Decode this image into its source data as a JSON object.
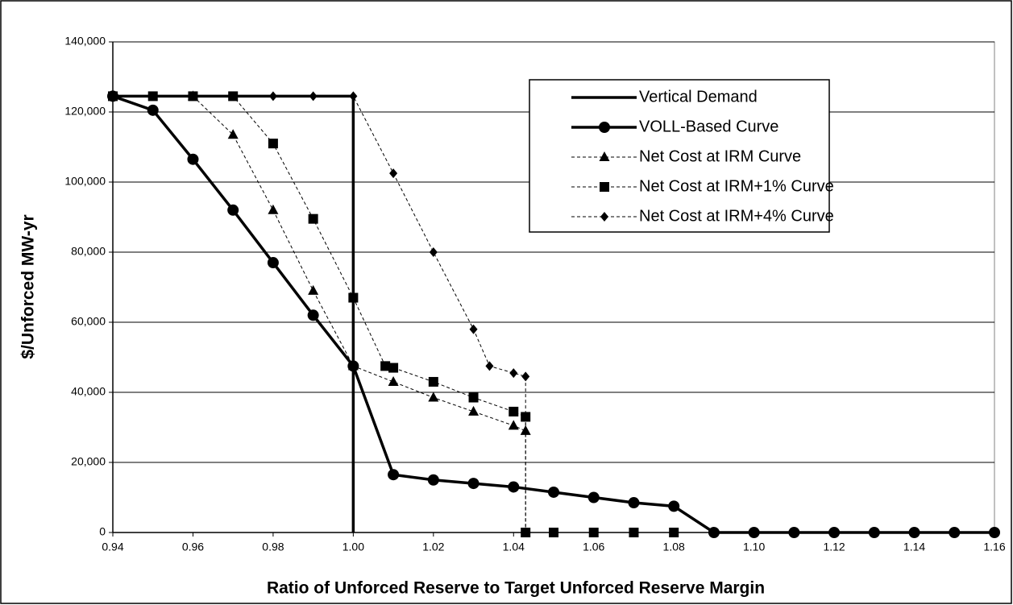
{
  "chart_data": {
    "type": "line",
    "x_label": "Ratio of Unforced Reserve to Target Unforced Reserve Margin",
    "y_label": "$/Unforced MW-yr",
    "xlim": [
      0.94,
      1.16
    ],
    "xticks": [
      0.94,
      0.96,
      0.98,
      {
        "value": 1,
        "label": "1.00"
      },
      1.02,
      1.04,
      1.06,
      1.08,
      {
        "value": 1.1,
        "label": "1.10"
      },
      1.12,
      1.14,
      1.16
    ],
    "ylim": [
      0,
      140000
    ],
    "yticks": [
      0,
      {
        "value": 20000,
        "label": "20,000"
      },
      {
        "value": 40000,
        "label": "40,000"
      },
      {
        "value": 60000,
        "label": "60,000"
      },
      {
        "value": 80000,
        "label": "80,000"
      },
      {
        "value": 100000,
        "label": "100,000"
      },
      {
        "value": 120000,
        "label": "120,000"
      },
      {
        "value": 140000,
        "label": "140,000"
      }
    ],
    "grid": true,
    "legend": "upper right",
    "series": [
      {
        "name": "Vertical Demand",
        "color": "#000000",
        "line_style": "solid",
        "marker": "none",
        "x": [
          0.94,
          1,
          1
        ],
        "values": [
          124500,
          124500,
          0
        ]
      },
      {
        "name": "VOLL-Based Curve",
        "color": "#000000",
        "line_style": "solid",
        "marker": "circle",
        "x": [
          0.94,
          0.95,
          0.96,
          0.97,
          0.98,
          0.99,
          1,
          1.01,
          1.02,
          1.03,
          1.04,
          1.05,
          1.06,
          1.07,
          1.08,
          1.09,
          1.1,
          1.11,
          1.12,
          1.13,
          1.14,
          1.15,
          1.16
        ],
        "values": [
          124500,
          120500,
          106500,
          92000,
          77000,
          62000,
          47500,
          16500,
          15000,
          14000,
          13000,
          11500,
          10000,
          8500,
          7500,
          0,
          0,
          0,
          0,
          0,
          0,
          0,
          0
        ]
      },
      {
        "name": "Net Cost at IRM Curve",
        "color": "#000000",
        "line_style": "dashed",
        "marker": "triangle",
        "x": [
          0.96,
          0.97,
          0.98,
          0.99,
          1,
          1.01,
          1.02,
          1.03,
          1.04,
          1.043
        ],
        "values": [
          124500,
          113500,
          92000,
          69000,
          47500,
          43000,
          38500,
          34500,
          30500,
          29000
        ]
      },
      {
        "name": "Net Cost at IRM+1% Curve",
        "color": "#000000",
        "line_style": "dashed",
        "marker": "square",
        "x": [
          0.94,
          0.95,
          0.96,
          0.97,
          0.98,
          0.99,
          1,
          1.008,
          1.01,
          1.02,
          1.03,
          1.04,
          1.043,
          1.043,
          1.05,
          1.06,
          1.07,
          1.08
        ],
        "values": [
          124500,
          124500,
          124500,
          124500,
          111000,
          89500,
          67000,
          47500,
          47000,
          43000,
          38500,
          34500,
          33000,
          0,
          0,
          0,
          0,
          0
        ]
      },
      {
        "name": "Net Cost at IRM+4% Curve",
        "color": "#000000",
        "line_style": "dashed",
        "marker": "diamond",
        "x": [
          0.94,
          0.95,
          0.96,
          0.97,
          0.98,
          0.99,
          1,
          1.01,
          1.02,
          1.03,
          1.034,
          1.04,
          1.043,
          1.043
        ],
        "values": [
          124500,
          124500,
          124500,
          124500,
          124500,
          124500,
          124500,
          102500,
          80000,
          58000,
          47500,
          45500,
          44500,
          0
        ]
      }
    ]
  }
}
